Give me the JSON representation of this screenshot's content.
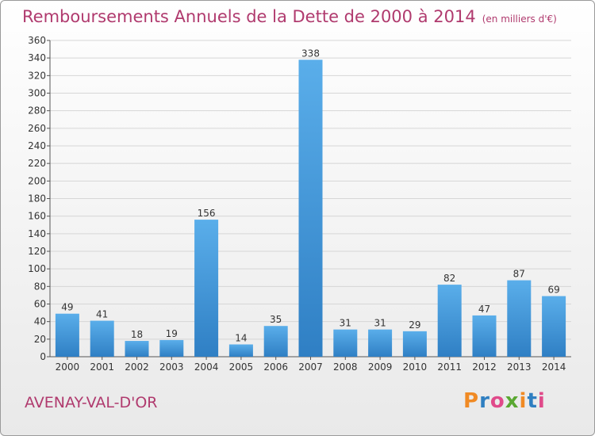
{
  "header": {
    "title": "Remboursements Annuels de la Dette de 2000 à 2014",
    "subtitle": "(en milliers d'€)"
  },
  "footer": {
    "location": "AVENAY-VAL-D'OR",
    "logo": {
      "text": "Proxiti",
      "letters": [
        "P",
        "r",
        "o",
        "x",
        "i",
        "t",
        "i"
      ],
      "colors": [
        "#f08a24",
        "#2f7fc1",
        "#e04a8a",
        "#5aa832",
        "#f08a24",
        "#2f7fc1",
        "#e04a8a"
      ]
    }
  },
  "chart_data": {
    "type": "bar",
    "title": "Remboursements Annuels de la Dette de 2000 à 2014",
    "categories": [
      "2000",
      "2001",
      "2002",
      "2003",
      "2004",
      "2005",
      "2006",
      "2007",
      "2008",
      "2009",
      "2010",
      "2011",
      "2012",
      "2013",
      "2014"
    ],
    "values": [
      49,
      41,
      18,
      19,
      156,
      14,
      35,
      338,
      31,
      31,
      29,
      82,
      47,
      87,
      69
    ],
    "data_labels": [
      "49",
      "41",
      "18",
      "19",
      "156",
      "14",
      "35",
      "338",
      "31",
      "31",
      "29",
      "82",
      "47",
      "87",
      "69"
    ],
    "ylim": [
      0,
      360
    ],
    "yticks": [
      "0",
      "20",
      "40",
      "60",
      "80",
      "100",
      "120",
      "140",
      "160",
      "180",
      "200",
      "220",
      "240",
      "260",
      "280",
      "300",
      "320",
      "340",
      "360"
    ],
    "grid": true,
    "bar_color": "#3d8fd6"
  }
}
